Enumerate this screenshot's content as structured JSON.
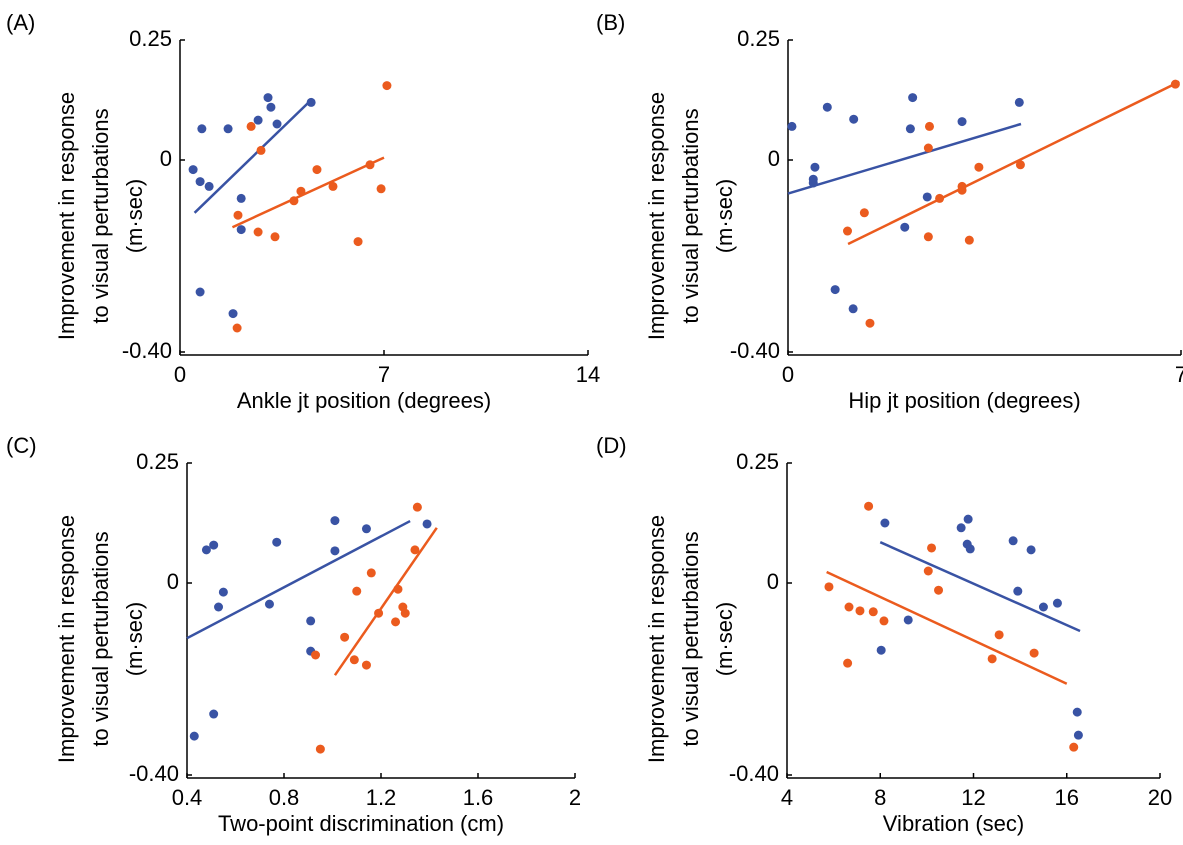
{
  "chart_data": [
    {
      "type": "scatter",
      "panel": "(A)",
      "ylabel": [
        "Improvement in response",
        "to visual perturbations",
        "(m·sec)"
      ],
      "xlabel": "Ankle jt position (degrees)",
      "xlim": [
        0,
        14
      ],
      "xticks": [
        0,
        7,
        14
      ],
      "ylim": [
        -0.4,
        0.25
      ],
      "yticks": [
        {
          "value": -0.4,
          "label": "-0.40"
        },
        0,
        0.25
      ],
      "series": [
        {
          "color": "#3953a4",
          "x": [
            0.45,
            0.75,
            0.69,
            1.0,
            1.65,
            2.68,
            3.02,
            3.12,
            3.33,
            4.5,
            2.1,
            2.1,
            0.69,
            1.82
          ],
          "values": [
            -0.02,
            0.065,
            -0.045,
            -0.055,
            0.065,
            0.083,
            0.13,
            0.11,
            0.075,
            0.12,
            -0.08,
            -0.145,
            -0.275,
            -0.32
          ],
          "fit": {
            "x": [
              0.5,
              4.5
            ],
            "values": [
              -0.11,
              0.125
            ]
          }
        },
        {
          "color": "#eb5b1e",
          "x": [
            7.1,
            2.44,
            2.78,
            1.99,
            2.68,
            3.26,
            1.96,
            3.91,
            4.15,
            4.7,
            5.25,
            6.11,
            6.52,
            6.9
          ],
          "values": [
            0.155,
            0.07,
            0.02,
            -0.115,
            -0.15,
            -0.16,
            -0.35,
            -0.085,
            -0.065,
            -0.02,
            -0.055,
            -0.17,
            -0.01,
            -0.06
          ],
          "fit": {
            "x": [
              1.8,
              7.0
            ],
            "values": [
              -0.14,
              0.005
            ]
          }
        }
      ]
    },
    {
      "type": "scatter",
      "panel": "(B)",
      "ylabel": [
        "Improvement in response",
        "to visual perturbations",
        "(m·sec)"
      ],
      "xlabel": "Hip jt position (degrees)",
      "xlim": [
        0,
        7
      ],
      "xticks": [
        0,
        7
      ],
      "ylim": [
        -0.4,
        0.25
      ],
      "yticks": [
        {
          "value": -0.4,
          "label": "-0.40"
        },
        0,
        0.25
      ],
      "series": [
        {
          "color": "#3953a4",
          "x": [
            0.07,
            0.7,
            1.17,
            2.22,
            2.18,
            3.1,
            4.12,
            0.48,
            0.45,
            0.45,
            2.48,
            2.08,
            0.84,
            1.16
          ],
          "values": [
            0.07,
            0.11,
            0.085,
            0.13,
            0.065,
            0.08,
            0.12,
            -0.015,
            -0.04,
            -0.048,
            -0.077,
            -0.14,
            -0.27,
            -0.31
          ],
          "fit": {
            "x": [
              0,
              4.15
            ],
            "values": [
              -0.07,
              0.075
            ]
          }
        },
        {
          "color": "#eb5b1e",
          "x": [
            6.9,
            2.52,
            2.5,
            3.4,
            4.14,
            1.36,
            1.06,
            2.7,
            3.1,
            3.1,
            2.5,
            3.23,
            1.46
          ],
          "values": [
            0.158,
            0.07,
            0.025,
            -0.015,
            -0.01,
            -0.11,
            -0.148,
            -0.08,
            -0.055,
            -0.063,
            -0.16,
            -0.167,
            -0.34
          ],
          "fit": {
            "x": [
              1.07,
              6.97
            ],
            "values": [
              -0.175,
              0.163
            ]
          }
        }
      ]
    },
    {
      "type": "scatter",
      "panel": "(C)",
      "ylabel": [
        "Improvement in response",
        "to visual perturbations",
        "(m·sec)"
      ],
      "xlabel": "Two-point discrimination (cm)",
      "xlim": [
        0.4,
        2
      ],
      "xticks": [
        0.4,
        0.8,
        1.2,
        1.6,
        2
      ],
      "ylim": [
        -0.4,
        0.25
      ],
      "yticks": [
        {
          "value": -0.4,
          "label": "-0.40"
        },
        0,
        0.25
      ],
      "series": [
        {
          "color": "#3953a4",
          "x": [
            0.48,
            0.51,
            0.55,
            0.53,
            0.77,
            0.74,
            1.01,
            1.01,
            1.14,
            1.39,
            0.91,
            0.91,
            0.51,
            0.43
          ],
          "values": [
            0.069,
            0.079,
            -0.019,
            -0.05,
            0.085,
            -0.044,
            0.13,
            0.067,
            0.113,
            0.123,
            -0.079,
            -0.142,
            -0.273,
            -0.319
          ],
          "fit": {
            "x": [
              0.4,
              1.32
            ],
            "values": [
              -0.115,
              0.129
            ]
          }
        },
        {
          "color": "#eb5b1e",
          "x": [
            1.35,
            1.34,
            1.16,
            1.1,
            1.27,
            1.19,
            1.29,
            1.3,
            1.26,
            1.05,
            0.93,
            1.09,
            1.14,
            0.95
          ],
          "values": [
            0.158,
            0.069,
            0.021,
            -0.017,
            -0.013,
            -0.063,
            -0.05,
            -0.063,
            -0.081,
            -0.113,
            -0.15,
            -0.16,
            -0.171,
            -0.346
          ],
          "fit": {
            "x": [
              1.01,
              1.43
            ],
            "values": [
              -0.192,
              0.115
            ]
          }
        }
      ]
    },
    {
      "type": "scatter",
      "panel": "(D)",
      "ylabel": [
        "Improvement in response",
        "to visual perturbations",
        "(m·sec)"
      ],
      "xlabel": "Vibration (sec)",
      "xlim": [
        4,
        20
      ],
      "xticks": [
        4,
        8,
        12,
        16,
        20
      ],
      "ylim": [
        -0.4,
        0.25
      ],
      "yticks": [
        {
          "value": -0.4,
          "label": "-0.40"
        },
        0,
        0.25
      ],
      "series": [
        {
          "color": "#3953a4",
          "x": [
            8.2,
            11.47,
            11.77,
            11.73,
            11.86,
            13.7,
            14.47,
            13.9,
            15.0,
            15.6,
            9.2,
            8.04,
            16.45,
            16.5
          ],
          "values": [
            0.125,
            0.115,
            0.133,
            0.081,
            0.071,
            0.088,
            0.069,
            -0.017,
            -0.05,
            -0.042,
            -0.077,
            -0.14,
            -0.269,
            -0.317
          ],
          "fit": {
            "x": [
              8.0,
              16.57
            ],
            "values": [
              0.085,
              -0.1
            ]
          }
        },
        {
          "color": "#eb5b1e",
          "x": [
            7.5,
            10.2,
            10.06,
            10.5,
            5.8,
            6.66,
            7.13,
            7.7,
            8.16,
            13.1,
            6.6,
            12.8,
            14.6,
            16.3
          ],
          "values": [
            0.16,
            0.073,
            0.025,
            -0.015,
            -0.008,
            -0.05,
            -0.058,
            -0.06,
            -0.079,
            -0.108,
            -0.167,
            -0.158,
            -0.146,
            -0.342
          ],
          "fit": {
            "x": [
              5.7,
              16.0
            ],
            "values": [
              0.023,
              -0.21
            ]
          }
        }
      ]
    }
  ]
}
